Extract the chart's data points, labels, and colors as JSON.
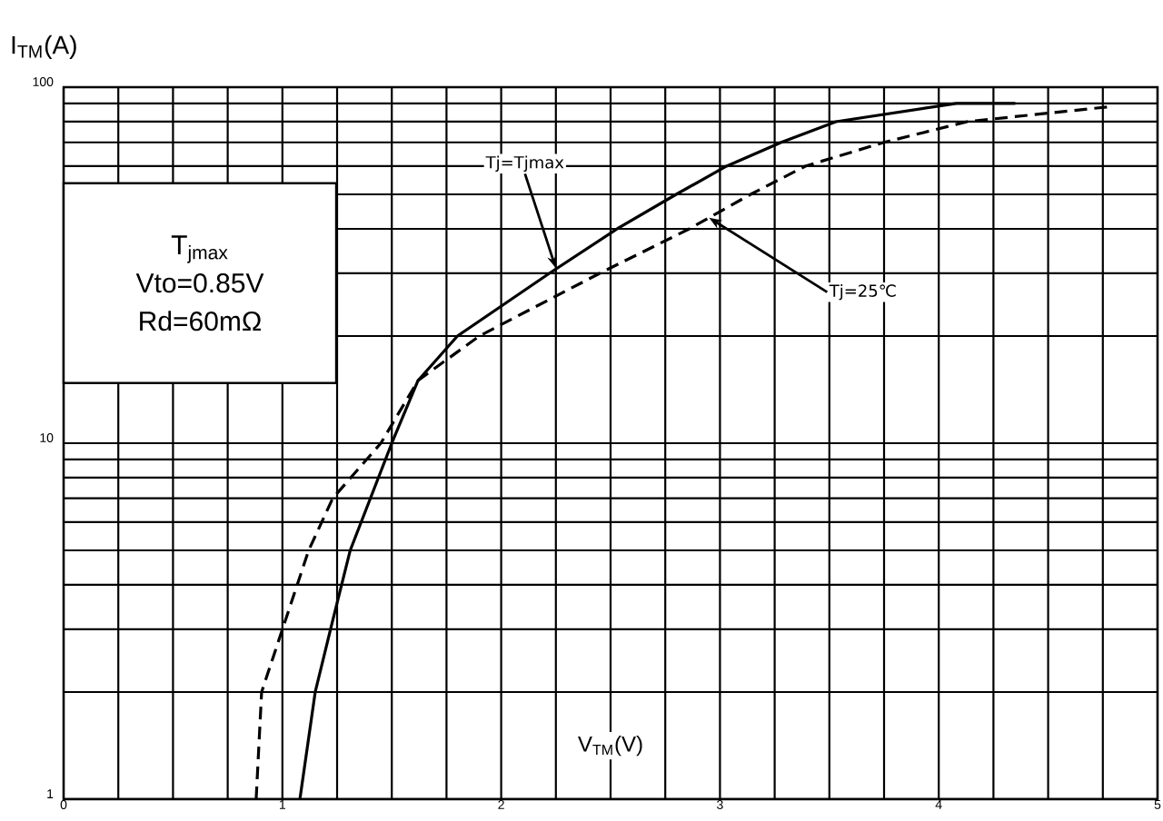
{
  "chart_data": {
    "type": "line",
    "xlabel": "V$_{TM}$(V)",
    "ylabel": "I$_{TM}$(A)",
    "xlim": [
      0,
      5
    ],
    "xticks": [
      0,
      1,
      2,
      3,
      4,
      5
    ],
    "ylim": [
      1,
      100
    ],
    "yticks": [
      1,
      10,
      100
    ],
    "log": "y",
    "grid": true,
    "series": [
      {
        "color": "#000000",
        "line_style": "solid",
        "x": [
          1.08,
          1.15,
          1.22,
          1.31,
          1.5,
          1.62,
          1.8,
          2.22,
          2.53,
          2.8,
          3.03,
          3.28,
          3.53,
          4.08,
          4.35
        ],
        "values": [
          1,
          2,
          3,
          5,
          10,
          15,
          20,
          30,
          40,
          50,
          60,
          70,
          80,
          90,
          90
        ]
      },
      {
        "color": "#000000",
        "line_style": "dashed",
        "x": [
          0.88,
          0.905,
          1.0,
          1.12,
          1.23,
          1.45,
          1.62,
          1.9,
          2.45,
          2.86,
          3.14,
          3.39,
          3.75,
          4.13,
          4.77
        ],
        "values": [
          1,
          2,
          3,
          5,
          7,
          10,
          15,
          20,
          30,
          40,
          50,
          60,
          70,
          80,
          88
        ]
      }
    ],
    "annotations": [
      "T$_{jmax}$",
      "Vto=0.85V",
      "Rd=60mΩ",
      {
        "text": "Tj=Tjmax",
        "x": 2.25,
        "y": 31
      },
      {
        "text": "Tj=25℃",
        "x": 2.95,
        "y": 43
      }
    ]
  }
}
